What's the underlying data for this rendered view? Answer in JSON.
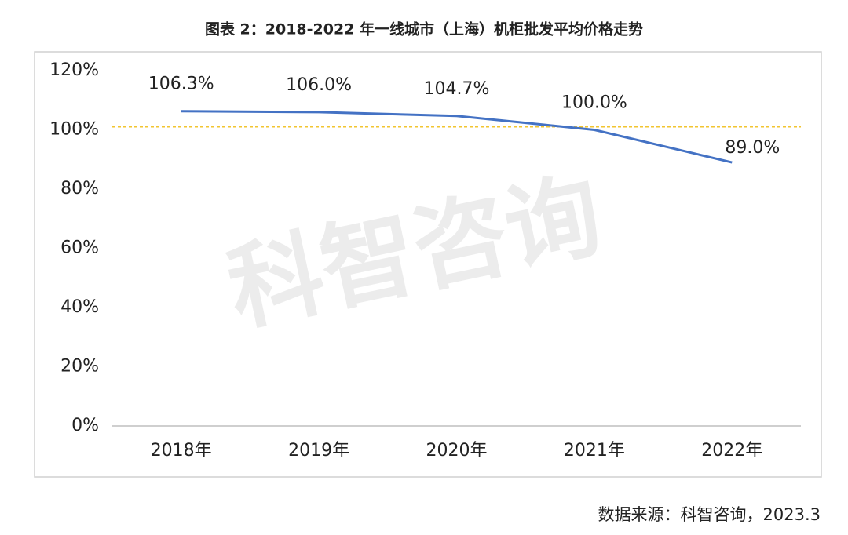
{
  "chart_data": {
    "type": "line",
    "title": "图表 2：2018-2022 年一线城市（上海）机柜批发平均价格走势",
    "watermark": "科智咨询",
    "source": "数据来源：科智咨询，2023.3",
    "categories": [
      "2018年",
      "2019年",
      "2020年",
      "2021年",
      "2022年"
    ],
    "series": [
      {
        "name": "机柜批发平均价格",
        "color": "#4472c4",
        "values": [
          106.3,
          106.0,
          104.7,
          100.0,
          89.0
        ],
        "value_labels": [
          "106.3%",
          "106.0%",
          "104.7%",
          "100.0%",
          "89.0%"
        ]
      }
    ],
    "reference_line": {
      "value": 101,
      "color": "#f2c530"
    },
    "ylim": [
      0,
      120
    ],
    "yticks": [
      {
        "value": 0,
        "label": "0%"
      },
      {
        "value": 20,
        "label": "20%"
      },
      {
        "value": 40,
        "label": "40%"
      },
      {
        "value": 60,
        "label": "60%"
      },
      {
        "value": 80,
        "label": "80%"
      },
      {
        "value": 100,
        "label": "100%"
      },
      {
        "value": 120,
        "label": "120%"
      }
    ],
    "grid": false
  }
}
